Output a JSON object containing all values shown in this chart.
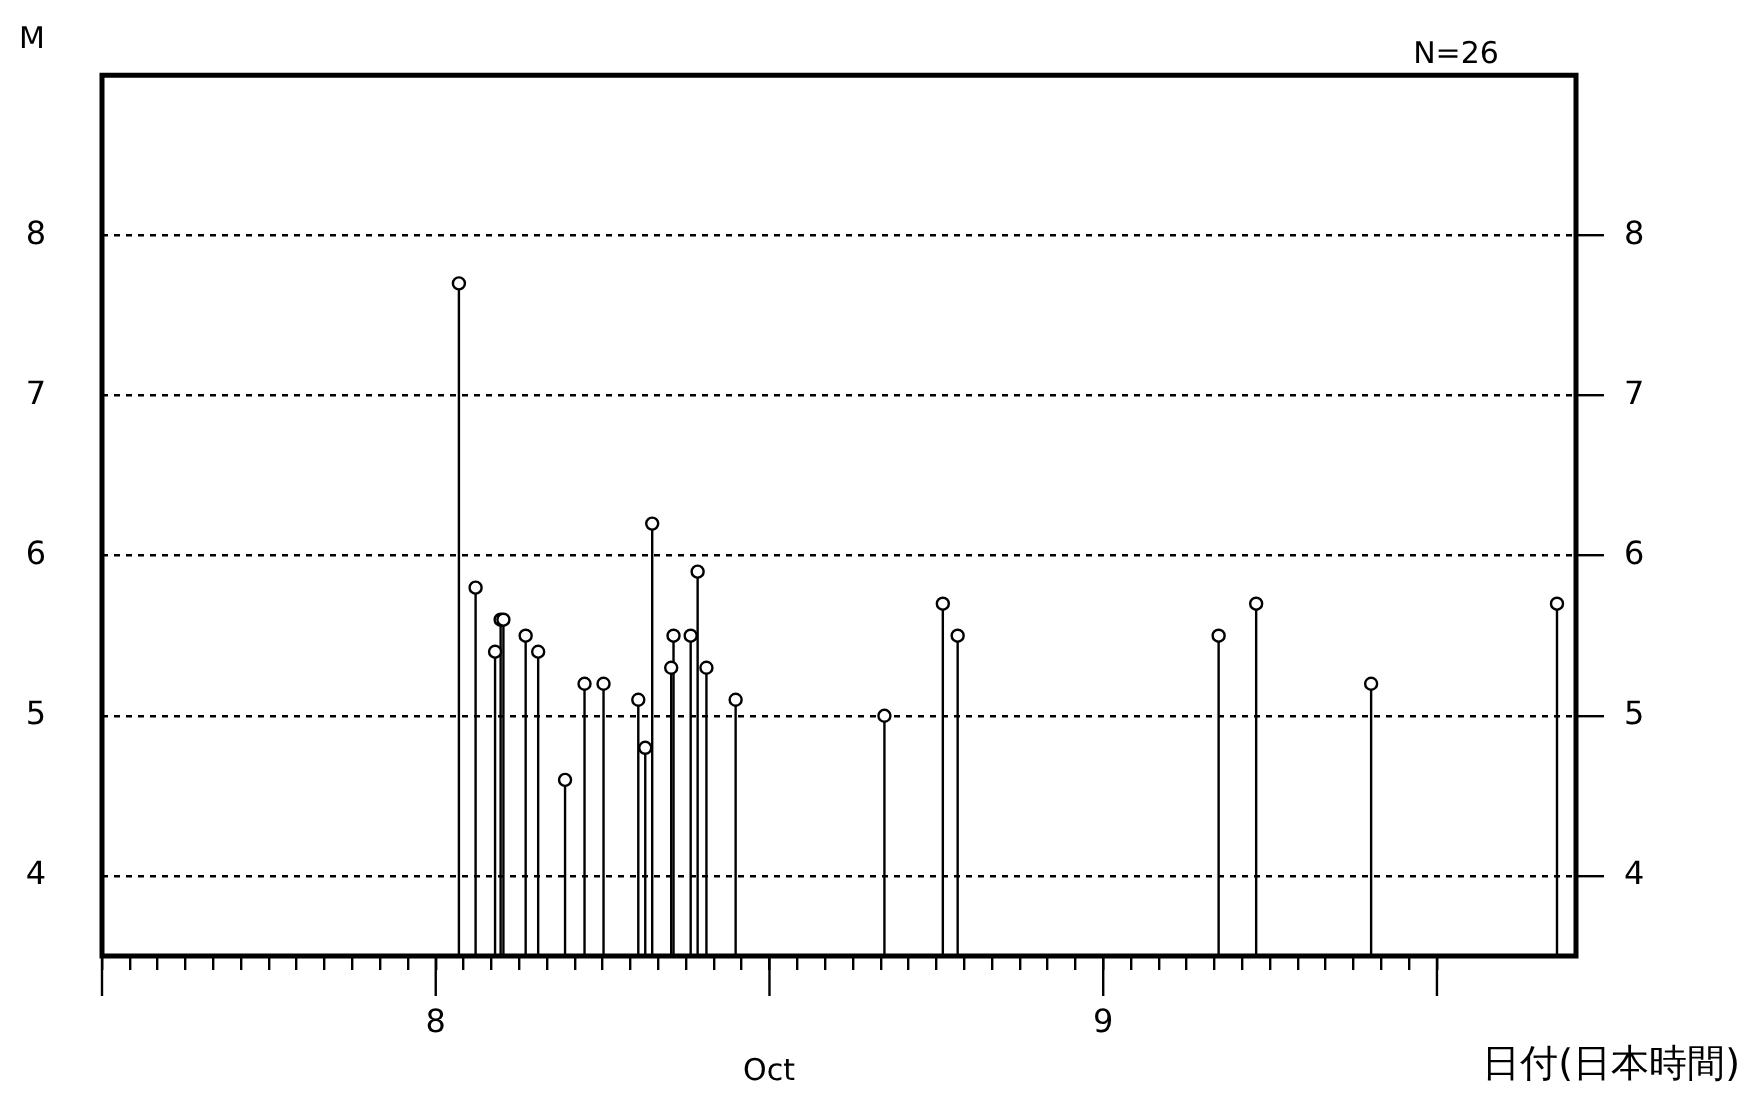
{
  "chart_data": {
    "type": "lollipop",
    "ylabel": "M",
    "xlabel": "日付(日本時間)",
    "annotations": [
      "N=26",
      "Oct"
    ],
    "x": [
      "--10-08T00:50",
      "--10-08T01:26",
      "--10-08T02:08",
      "--10-08T02:20",
      "--10-08T02:26",
      "--10-08T03:14",
      "--10-08T03:41",
      "--10-08T04:39",
      "--10-08T05:21",
      "--10-08T06:02",
      "--10-08T07:17",
      "--10-08T07:32",
      "--10-08T07:47",
      "--10-08T08:28",
      "--10-08T08:33",
      "--10-08T09:10",
      "--10-08T09:25",
      "--10-08T09:44",
      "--10-08T10:47",
      "--10-08T16:08",
      "--10-08T18:14",
      "--10-08T18:46",
      "--10-09T04:09",
      "--10-09T05:30",
      "--10-09T09:38",
      "--10-09T16:19"
    ],
    "values": [
      7.7,
      5.8,
      5.4,
      5.6,
      5.6,
      5.5,
      5.4,
      4.6,
      5.2,
      5.2,
      5.1,
      4.8,
      6.2,
      5.3,
      5.5,
      5.5,
      5.9,
      5.3,
      5.1,
      5.0,
      5.7,
      5.5,
      5.5,
      5.7,
      5.2,
      5.7
    ],
    "color": "#000000",
    "marker": "circle",
    "xlim": [
      "--10-07T12:00",
      "--10-09T17:00"
    ],
    "xticks": [
      {
        "value": "--10-07T12:00",
        "label": null
      },
      {
        "value": "--10-07T13:00",
        "label": null
      },
      {
        "value": "--10-07T14:00",
        "label": null
      },
      {
        "value": "--10-07T15:00",
        "label": null
      },
      {
        "value": "--10-07T16:00",
        "label": null
      },
      {
        "value": "--10-07T17:00",
        "label": null
      },
      {
        "value": "--10-07T18:00",
        "label": null
      },
      {
        "value": "--10-07T19:00",
        "label": null
      },
      {
        "value": "--10-07T20:00",
        "label": null
      },
      {
        "value": "--10-07T21:00",
        "label": null
      },
      {
        "value": "--10-07T22:00",
        "label": null
      },
      {
        "value": "--10-07T23:00",
        "label": null
      },
      {
        "value": "--10-08T00:00",
        "label": "8"
      },
      {
        "value": "--10-08T01:00",
        "label": null
      },
      {
        "value": "--10-08T02:00",
        "label": null
      },
      {
        "value": "--10-08T03:00",
        "label": null
      },
      {
        "value": "--10-08T04:00",
        "label": null
      },
      {
        "value": "--10-08T05:00",
        "label": null
      },
      {
        "value": "--10-08T06:00",
        "label": null
      },
      {
        "value": "--10-08T07:00",
        "label": null
      },
      {
        "value": "--10-08T08:00",
        "label": null
      },
      {
        "value": "--10-08T09:00",
        "label": null
      },
      {
        "value": "--10-08T10:00",
        "label": null
      },
      {
        "value": "--10-08T11:00",
        "label": null
      },
      {
        "value": "--10-08T12:00",
        "label": null
      },
      {
        "value": "--10-08T13:00",
        "label": null
      },
      {
        "value": "--10-08T14:00",
        "label": null
      },
      {
        "value": "--10-08T15:00",
        "label": null
      },
      {
        "value": "--10-08T16:00",
        "label": null
      },
      {
        "value": "--10-08T17:00",
        "label": null
      },
      {
        "value": "--10-08T18:00",
        "label": null
      },
      {
        "value": "--10-08T19:00",
        "label": null
      },
      {
        "value": "--10-08T20:00",
        "label": null
      },
      {
        "value": "--10-08T21:00",
        "label": null
      },
      {
        "value": "--10-08T22:00",
        "label": null
      },
      {
        "value": "--10-08T23:00",
        "label": null
      },
      {
        "value": "--10-09T00:00",
        "label": "9"
      },
      {
        "value": "--10-09T01:00",
        "label": null
      },
      {
        "value": "--10-09T02:00",
        "label": null
      },
      {
        "value": "--10-09T03:00",
        "label": null
      },
      {
        "value": "--10-09T04:00",
        "label": null
      },
      {
        "value": "--10-09T05:00",
        "label": null
      },
      {
        "value": "--10-09T06:00",
        "label": null
      },
      {
        "value": "--10-09T07:00",
        "label": null
      },
      {
        "value": "--10-09T08:00",
        "label": null
      },
      {
        "value": "--10-09T09:00",
        "label": null
      },
      {
        "value": "--10-09T10:00",
        "label": null
      },
      {
        "value": "--10-09T11:00",
        "label": null
      },
      {
        "value": "--10-09T12:00",
        "label": null
      }
    ],
    "ylim": [
      3.5,
      9
    ],
    "yticks": [
      4,
      5,
      6,
      7,
      8
    ],
    "y2lim": [
      3.5,
      9
    ],
    "y2ticks": [
      4,
      5,
      6,
      7,
      8
    ],
    "grid": "y"
  }
}
